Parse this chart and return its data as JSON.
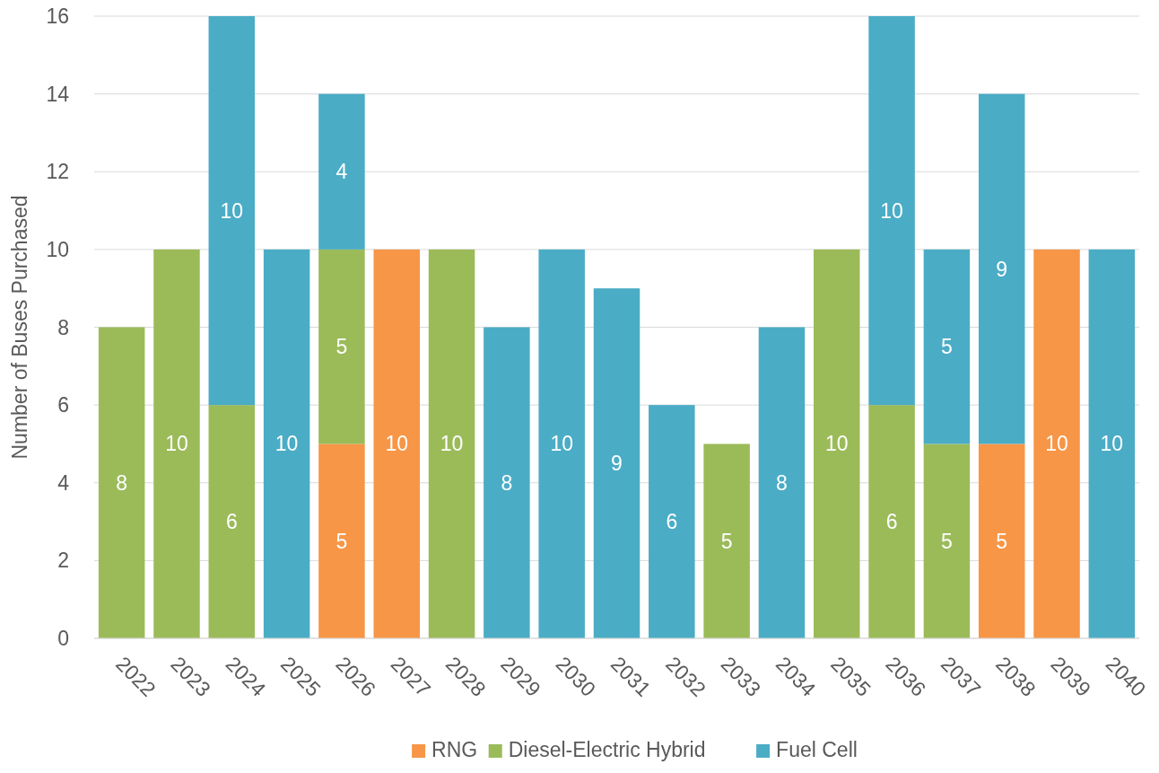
{
  "chart_data": {
    "type": "bar",
    "stacked": true,
    "ylabel": "Number of Buses Purchased",
    "categories": [
      "2022",
      "2023",
      "2024",
      "2025",
      "2026",
      "2027",
      "2028",
      "2029",
      "2030",
      "2031",
      "2032",
      "2033",
      "2034",
      "2035",
      "2036",
      "2037",
      "2038",
      "2039",
      "2040"
    ],
    "series": [
      {
        "name": "RNG",
        "color": "#f79646",
        "values": [
          null,
          null,
          null,
          null,
          5,
          10,
          null,
          null,
          null,
          null,
          null,
          null,
          null,
          null,
          null,
          null,
          5,
          10,
          null
        ]
      },
      {
        "name": "Diesel-Electric Hybrid",
        "color": "#9bbb59",
        "values": [
          8,
          10,
          6,
          null,
          5,
          null,
          10,
          null,
          null,
          null,
          null,
          5,
          null,
          10,
          6,
          5,
          null,
          null,
          null
        ]
      },
      {
        "name": "Fuel Cell",
        "color": "#4bacc6",
        "values": [
          null,
          null,
          10,
          10,
          4,
          null,
          null,
          8,
          10,
          9,
          6,
          null,
          8,
          null,
          10,
          5,
          9,
          null,
          10
        ]
      }
    ],
    "ylim": [
      0,
      16
    ],
    "yticks": [
      0,
      2,
      4,
      6,
      8,
      10,
      12,
      14,
      16
    ],
    "grid": "y",
    "legend": "bottom",
    "data_labels": true
  }
}
